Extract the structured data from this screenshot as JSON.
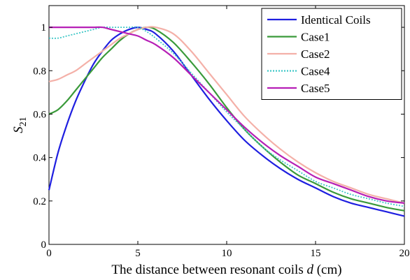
{
  "chart_data": {
    "type": "line",
    "xlabel": "The distance between resonant coils",
    "xlabel_var": "d",
    "xlabel_unit": "(cm)",
    "ylabel": "S",
    "ylabel_sub": "21",
    "xlim": [
      0,
      20
    ],
    "ylim": [
      0,
      1.1
    ],
    "xticks": [
      "0",
      "5",
      "10",
      "15",
      "20"
    ],
    "yticks": [
      "0",
      "0.2",
      "0.4",
      "0.6",
      "0.8",
      "1"
    ],
    "grid": false,
    "legend_position": "top-right",
    "series": [
      {
        "name": "Identical Coils",
        "color": "#1f1fe0",
        "dash": "solid",
        "x": [
          0,
          0.5,
          1,
          1.5,
          2,
          2.5,
          3,
          3.5,
          4,
          4.5,
          5,
          5.5,
          6,
          7,
          8,
          9,
          10,
          11,
          12,
          13,
          14,
          15,
          16,
          17,
          18,
          19,
          20
        ],
        "y": [
          0.25,
          0.42,
          0.55,
          0.66,
          0.75,
          0.83,
          0.89,
          0.94,
          0.97,
          0.99,
          1.0,
          0.99,
          0.97,
          0.89,
          0.78,
          0.67,
          0.57,
          0.48,
          0.41,
          0.35,
          0.3,
          0.26,
          0.22,
          0.19,
          0.17,
          0.15,
          0.13
        ]
      },
      {
        "name": "Case1",
        "color": "#3a9a3a",
        "dash": "solid",
        "x": [
          0,
          0.5,
          1,
          1.5,
          2,
          2.5,
          3,
          3.5,
          4,
          4.5,
          5,
          5.5,
          6,
          7,
          8,
          9,
          10,
          11,
          12,
          13,
          14,
          15,
          16,
          17,
          18,
          19,
          20
        ],
        "y": [
          0.6,
          0.62,
          0.66,
          0.71,
          0.76,
          0.81,
          0.86,
          0.9,
          0.94,
          0.97,
          0.99,
          1.0,
          0.99,
          0.93,
          0.84,
          0.74,
          0.63,
          0.53,
          0.45,
          0.38,
          0.32,
          0.28,
          0.24,
          0.21,
          0.19,
          0.17,
          0.155
        ]
      },
      {
        "name": "Case2",
        "color": "#f4b0a8",
        "dash": "solid",
        "x": [
          0,
          0.5,
          1,
          1.5,
          2,
          2.5,
          3,
          3.5,
          4,
          4.5,
          5,
          5.5,
          6,
          7,
          8,
          9,
          10,
          11,
          12,
          13,
          14,
          15,
          16,
          17,
          18,
          19,
          20
        ],
        "y": [
          0.75,
          0.76,
          0.78,
          0.8,
          0.83,
          0.86,
          0.89,
          0.92,
          0.95,
          0.97,
          0.99,
          1.0,
          1.0,
          0.97,
          0.89,
          0.79,
          0.69,
          0.59,
          0.51,
          0.44,
          0.38,
          0.33,
          0.29,
          0.26,
          0.23,
          0.21,
          0.19
        ]
      },
      {
        "name": "Case4",
        "color": "#3fc7c7",
        "dash": "dotted",
        "x": [
          0,
          0.5,
          1,
          1.5,
          2,
          2.5,
          3,
          3.5,
          4,
          4.5,
          5,
          5.5,
          6,
          7,
          8,
          9,
          10,
          11,
          12,
          13,
          14,
          15,
          16,
          17,
          18,
          19,
          20
        ],
        "y": [
          0.95,
          0.95,
          0.96,
          0.97,
          0.98,
          0.99,
          1.0,
          1.0,
          1.0,
          1.0,
          1.0,
          0.98,
          0.95,
          0.88,
          0.79,
          0.7,
          0.61,
          0.53,
          0.45,
          0.39,
          0.34,
          0.29,
          0.26,
          0.23,
          0.21,
          0.19,
          0.175
        ]
      },
      {
        "name": "Case5",
        "color": "#b61fb6",
        "dash": "solid",
        "x": [
          0,
          0.5,
          1,
          1.5,
          2,
          2.5,
          3,
          3.5,
          4,
          4.5,
          5,
          5.5,
          6,
          7,
          8,
          9,
          10,
          11,
          12,
          13,
          14,
          15,
          16,
          17,
          18,
          19,
          20
        ],
        "y": [
          1.0,
          1.0,
          1.0,
          1.0,
          1.0,
          1.0,
          1.0,
          0.99,
          0.98,
          0.97,
          0.96,
          0.94,
          0.92,
          0.86,
          0.78,
          0.7,
          0.62,
          0.54,
          0.47,
          0.41,
          0.36,
          0.31,
          0.28,
          0.25,
          0.22,
          0.2,
          0.19
        ]
      }
    ]
  }
}
